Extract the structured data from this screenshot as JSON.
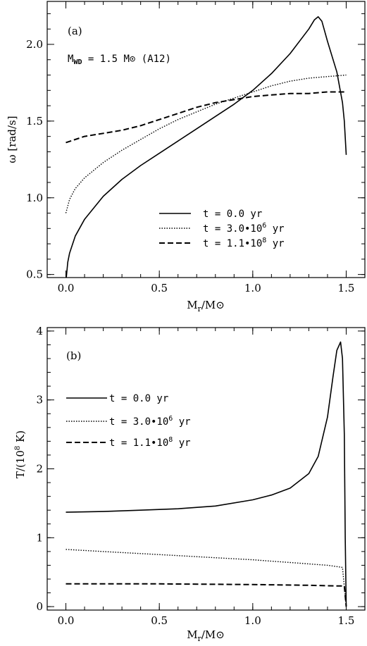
{
  "chart_data": [
    {
      "type": "line",
      "panel_label": "(a)",
      "annotation": "M_WD = 1.5 M⊙ (A12)",
      "xlabel": "Mr/M⊙",
      "ylabel": "ω [rad/s]",
      "xlim": [
        -0.1,
        1.6
      ],
      "ylim": [
        0.48,
        2.28
      ],
      "xticks": [
        "0.0",
        "0.5",
        "1.0",
        "1.5"
      ],
      "yticks": [
        "0.5",
        "1.0",
        "1.5",
        "2.0"
      ],
      "legend_position": "lower-right",
      "series": [
        {
          "name": "t = 0.0 yr",
          "dash": "solid",
          "x": [
            0.0,
            0.01,
            0.02,
            0.05,
            0.1,
            0.2,
            0.3,
            0.4,
            0.5,
            0.6,
            0.7,
            0.8,
            0.9,
            1.0,
            1.1,
            1.2,
            1.3,
            1.33,
            1.35,
            1.37,
            1.4,
            1.45,
            1.48,
            1.49,
            1.5
          ],
          "y": [
            0.45,
            0.58,
            0.64,
            0.75,
            0.86,
            1.01,
            1.12,
            1.21,
            1.29,
            1.37,
            1.45,
            1.53,
            1.61,
            1.7,
            1.81,
            1.94,
            2.1,
            2.16,
            2.18,
            2.15,
            2.02,
            1.82,
            1.62,
            1.5,
            1.28
          ]
        },
        {
          "name": "t = 3.0·10⁶ yr",
          "dash": "dotted",
          "x": [
            0.0,
            0.02,
            0.05,
            0.1,
            0.2,
            0.3,
            0.4,
            0.5,
            0.6,
            0.7,
            0.8,
            0.9,
            1.0,
            1.1,
            1.2,
            1.3,
            1.4,
            1.5
          ],
          "y": [
            0.9,
            0.99,
            1.06,
            1.13,
            1.23,
            1.31,
            1.38,
            1.45,
            1.51,
            1.56,
            1.61,
            1.65,
            1.69,
            1.73,
            1.76,
            1.78,
            1.79,
            1.8
          ]
        },
        {
          "name": "t = 1.1·10⁸ yr",
          "dash": "dashed",
          "x": [
            0.0,
            0.05,
            0.1,
            0.2,
            0.3,
            0.4,
            0.5,
            0.6,
            0.7,
            0.8,
            0.9,
            1.0,
            1.1,
            1.2,
            1.3,
            1.4,
            1.5
          ],
          "y": [
            1.36,
            1.38,
            1.4,
            1.42,
            1.44,
            1.47,
            1.51,
            1.55,
            1.59,
            1.62,
            1.64,
            1.66,
            1.67,
            1.68,
            1.68,
            1.69,
            1.69
          ]
        }
      ]
    },
    {
      "type": "line",
      "panel_label": "(b)",
      "xlabel": "Mr/M⊙",
      "ylabel": "T/(10⁸ K)",
      "xlim": [
        -0.1,
        1.6
      ],
      "ylim": [
        -0.05,
        4.05
      ],
      "xticks": [
        "0.0",
        "0.5",
        "1.0",
        "1.5"
      ],
      "yticks": [
        "0",
        "1",
        "2",
        "3",
        "4"
      ],
      "legend_position": "upper-left",
      "series": [
        {
          "name": "t = 0.0 yr",
          "dash": "solid",
          "x": [
            0.0,
            0.2,
            0.4,
            0.6,
            0.8,
            1.0,
            1.1,
            1.2,
            1.3,
            1.35,
            1.4,
            1.43,
            1.45,
            1.47,
            1.48,
            1.49,
            1.495,
            1.5
          ],
          "y": [
            1.37,
            1.38,
            1.4,
            1.42,
            1.46,
            1.55,
            1.62,
            1.72,
            1.93,
            2.18,
            2.75,
            3.35,
            3.72,
            3.84,
            3.6,
            2.5,
            1.0,
            0.0
          ]
        },
        {
          "name": "t = 3.0·10⁶ yr",
          "dash": "dotted",
          "x": [
            0.0,
            0.2,
            0.4,
            0.6,
            0.8,
            1.0,
            1.2,
            1.4,
            1.48,
            1.5
          ],
          "y": [
            0.83,
            0.8,
            0.77,
            0.74,
            0.71,
            0.68,
            0.64,
            0.6,
            0.57,
            0.0
          ]
        },
        {
          "name": "t = 1.1·10⁸ yr",
          "dash": "dashed",
          "x": [
            0.0,
            0.5,
            1.0,
            1.3,
            1.45,
            1.49,
            1.5
          ],
          "y": [
            0.33,
            0.33,
            0.32,
            0.31,
            0.3,
            0.3,
            0.0
          ]
        }
      ]
    }
  ],
  "text": {
    "a_label": "(a)",
    "a_mass": "M",
    "a_mass_sub": "WD",
    "a_mass_rest": " = 1.5 M⊙ (A12)",
    "a_ylabel": "ω [rad/s]",
    "a_xlabel_m": "M",
    "a_xlabel_sub": "r",
    "a_xlabel_rest": "/M⊙",
    "b_label": "(b)",
    "b_ylabel_main": "T/(10",
    "b_ylabel_sup": "8",
    "b_ylabel_end": " K)",
    "b_xlabel_m": "M",
    "b_xlabel_sub": "r",
    "b_xlabel_rest": "/M⊙",
    "leg1": "t = 0.0 yr",
    "leg2_main": "t = 3.0•10",
    "leg2_sup": "6",
    "leg2_end": " yr",
    "leg3_main": "t = 1.1•10",
    "leg3_sup": "8",
    "leg3_end": " yr"
  }
}
